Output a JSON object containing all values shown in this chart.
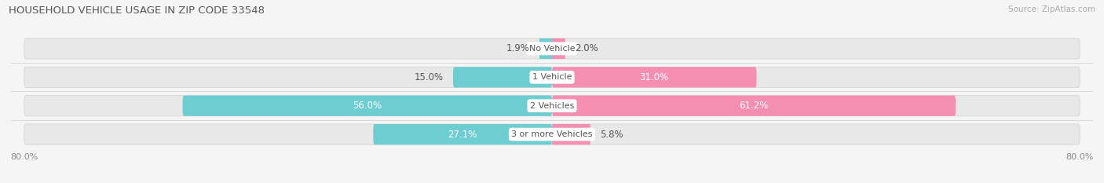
{
  "title": "HOUSEHOLD VEHICLE USAGE IN ZIP CODE 33548",
  "source": "Source: ZipAtlas.com",
  "categories": [
    "No Vehicle",
    "1 Vehicle",
    "2 Vehicles",
    "3 or more Vehicles"
  ],
  "owner_values": [
    1.9,
    15.0,
    56.0,
    27.1
  ],
  "renter_values": [
    2.0,
    31.0,
    61.2,
    5.8
  ],
  "owner_color": "#6dcdd0",
  "renter_color": "#f48fb1",
  "bar_bg_color": "#e8e8e8",
  "bar_border_color": "#d0d0d0",
  "axis_max": 80.0,
  "x_tick_labels": [
    "80.0%",
    "80.0%"
  ],
  "bar_height": 0.72,
  "label_fontsize": 8.5,
  "title_fontsize": 9.5,
  "source_fontsize": 7.5,
  "category_fontsize": 8,
  "background_color": "#f5f5f5",
  "text_dark": "#555555",
  "text_light": "#888888"
}
